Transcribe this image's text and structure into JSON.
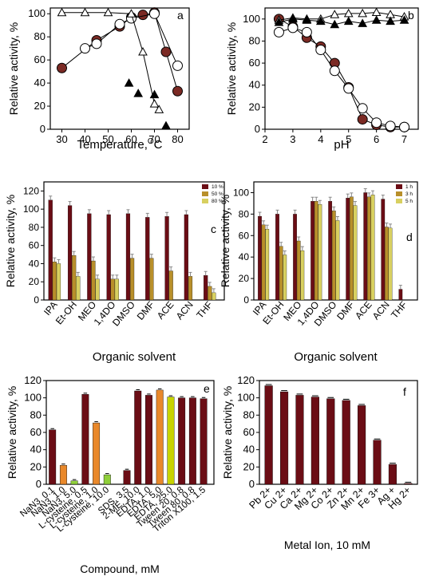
{
  "colors": {
    "maroon": "#6b0d15",
    "brown_marker": "#7b2a24",
    "olive": "#8a8a2a",
    "orange": "#e9882a",
    "green": "#8fcf3a",
    "yellow": "#f0d800",
    "black": "#000000"
  },
  "chart_data": [
    {
      "panel": "a",
      "type": "scatter",
      "xlabel": "Temperature,",
      "xlabel_superscript": "O",
      "xlabel_suffix": "C",
      "ylabel": "Relative activity, %",
      "xlim": [
        25,
        85
      ],
      "ylim": [
        0,
        105
      ],
      "xticks": [
        "30",
        "40",
        "50",
        "60",
        "70",
        "80"
      ],
      "yticks": [
        "0",
        "20",
        "40",
        "60",
        "80",
        "100"
      ],
      "series": [
        {
          "marker": "filled-circle",
          "x": [
            30,
            45,
            55,
            60,
            65,
            70,
            75,
            80
          ],
          "y": [
            53,
            77,
            89,
            97,
            99,
            101,
            67,
            33
          ]
        },
        {
          "marker": "open-circle",
          "x": [
            40,
            45,
            55,
            60,
            70,
            80
          ],
          "y": [
            70,
            74,
            91,
            96,
            100,
            55
          ]
        },
        {
          "marker": "open-triangle",
          "x": [
            30,
            40,
            50,
            60,
            65,
            70,
            72
          ],
          "y": [
            101,
            101,
            101,
            100,
            67,
            22,
            17
          ]
        },
        {
          "marker": "filled-triangle",
          "x": [
            59,
            63,
            70,
            75
          ],
          "y": [
            40,
            31,
            30,
            3
          ]
        }
      ]
    },
    {
      "panel": "b",
      "type": "scatter",
      "xlabel": "pH",
      "ylabel": "Relative activity, %",
      "xlim": [
        2,
        7.5
      ],
      "ylim": [
        0,
        110
      ],
      "xticks": [
        "2",
        "3",
        "4",
        "5",
        "6",
        "7"
      ],
      "yticks": [
        "0",
        "20",
        "40",
        "60",
        "80",
        "100"
      ],
      "series": [
        {
          "marker": "filled-circle",
          "x": [
            2.5,
            3.0,
            3.5,
            4.0,
            4.5,
            5.0,
            5.5,
            6.0,
            6.5,
            7.0
          ],
          "y": [
            100,
            93,
            83,
            75,
            60,
            38,
            9,
            4,
            2,
            2
          ]
        },
        {
          "marker": "open-circle",
          "x": [
            2.5,
            3.0,
            3.5,
            4.0,
            4.5,
            5.0,
            5.5,
            6.0,
            6.5,
            7.0
          ],
          "y": [
            88,
            92,
            88,
            72,
            53,
            37,
            19,
            6,
            3,
            2
          ]
        },
        {
          "marker": "open-triangle",
          "x": [
            2.5,
            3.0,
            3.5,
            4.0,
            4.5,
            5.0,
            5.5,
            6.0,
            6.5,
            7.0
          ],
          "y": [
            99,
            101,
            100,
            100,
            104,
            105,
            105,
            106,
            104,
            102
          ]
        },
        {
          "marker": "filled-triangle",
          "x": [
            2.5,
            3.0,
            3.5,
            4.0,
            4.5,
            5.0,
            5.5,
            6.0,
            6.5,
            7.0
          ],
          "y": [
            97,
            100,
            99,
            98,
            95,
            98,
            96,
            99,
            98,
            99
          ]
        }
      ]
    },
    {
      "panel": "c",
      "type": "bar",
      "xlabel": "Organic solvent",
      "ylabel": "Relative activity, %",
      "ylim": [
        0,
        130
      ],
      "yticks": [
        "0",
        "20",
        "40",
        "60",
        "80",
        "100",
        "120"
      ],
      "categories": [
        "IPA",
        "Et-OH",
        "MEO",
        "1,4DO",
        "DMSO",
        "DMF",
        "ACE",
        "ACN",
        "THF"
      ],
      "series": [
        {
          "name": "10 %",
          "color": "#6b0d15",
          "values": [
            110,
            104,
            95,
            94,
            95,
            91,
            92,
            94,
            27
          ]
        },
        {
          "name": "50 %",
          "color": "#b88f2a",
          "values": [
            42,
            49,
            43,
            23,
            46,
            46,
            32,
            26,
            15
          ]
        },
        {
          "name": "80 %",
          "color": "#d8d060",
          "values": [
            40,
            26,
            23,
            23,
            0,
            0,
            0,
            0,
            8
          ]
        }
      ]
    },
    {
      "panel": "d",
      "type": "bar",
      "xlabel": "Organic solvent",
      "ylabel": "Relative activity, %",
      "ylim": [
        0,
        110
      ],
      "yticks": [
        "0",
        "20",
        "40",
        "60",
        "80",
        "100"
      ],
      "categories": [
        "IPA",
        "Et-OH",
        "MEO",
        "1,4DO",
        "DMSO",
        "DMF",
        "ACE",
        "ACN",
        "THF"
      ],
      "series": [
        {
          "name": "1 h",
          "color": "#6b0d15",
          "values": [
            78,
            80,
            80,
            92,
            92,
            95,
            100,
            94,
            10
          ]
        },
        {
          "name": "3 h",
          "color": "#b88f2a",
          "values": [
            70,
            50,
            55,
            92,
            83,
            96,
            96,
            68,
            0
          ]
        },
        {
          "name": "5 h",
          "color": "#d8d060",
          "values": [
            66,
            42,
            46,
            89,
            74,
            88,
            98,
            67,
            0
          ]
        }
      ]
    },
    {
      "panel": "e",
      "type": "bar",
      "xlabel": "Compound, mM",
      "ylabel": "Relative activity, %",
      "ylim": [
        0,
        120
      ],
      "yticks": [
        "0",
        "20",
        "40",
        "60",
        "80",
        "100",
        "120"
      ],
      "categories": [
        "NaN3, 0.1",
        "NaN3, 1.0",
        "NaN3, 5.0",
        "L-cysteine, 0.5",
        "L-cysteine, 1.0",
        "L-cysteine, 10.0",
        "SDS, 3.5",
        "2-ME, 10.0",
        "EDTA, 1.0",
        "EDTA, 5.0",
        "EDTA, 25.0",
        "Tween 20, 0.8",
        "Tween 80, 0.8",
        "Triton X100, 1.5"
      ],
      "gap_after": [
        6
      ],
      "values": [
        63,
        22,
        4,
        104,
        71,
        11,
        16,
        108,
        103,
        109,
        101,
        100,
        100,
        99
      ],
      "colors": [
        "#6b0d15",
        "#e9882a",
        "#8fcf3a",
        "#6b0d15",
        "#e9882a",
        "#8fcf3a",
        "#6b0d15",
        "#6b0d15",
        "#6b0d15",
        "#e9882a",
        "#c8d400",
        "#6b0d15",
        "#6b0d15",
        "#6b0d15"
      ]
    },
    {
      "panel": "f",
      "type": "bar",
      "xlabel": "Metal Ion, 10 mM",
      "ylabel": "Relative activity, %",
      "ylim": [
        0,
        120
      ],
      "yticks": [
        "0",
        "20",
        "40",
        "60",
        "80",
        "100",
        "120"
      ],
      "categories": [
        "Pb 2+",
        "Cu 2+",
        "Ca 2+",
        "Mg 2+",
        "Co 2+",
        "Zn 2+",
        "Mn 2+",
        "Fe 3+",
        "Ag +",
        "Hg 2+"
      ],
      "values": [
        114,
        107,
        103,
        101,
        99,
        97,
        91,
        51,
        23,
        1
      ],
      "color": "#6b0d15"
    }
  ]
}
